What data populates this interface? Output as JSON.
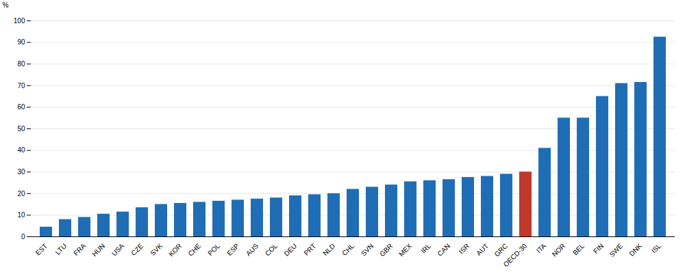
{
  "chart_data": {
    "type": "bar",
    "categories": [
      "EST",
      "LTU",
      "FRA",
      "HUN",
      "USA",
      "CZE",
      "SVK",
      "KOR",
      "CHE",
      "POL",
      "ESP",
      "AUS",
      "COL",
      "DEU",
      "PRT",
      "NLD",
      "CHL",
      "SVN",
      "GBR",
      "MEX",
      "IRL",
      "CAN",
      "ISR",
      "AUT",
      "GRC",
      "OECD-30",
      "ITA",
      "NOR",
      "BEL",
      "FIN",
      "SWE",
      "DNK",
      "ISL"
    ],
    "values": [
      4.5,
      8.0,
      9.0,
      10.5,
      11.5,
      13.5,
      15.0,
      15.5,
      16.0,
      16.5,
      17.0,
      17.5,
      18.0,
      19.0,
      19.5,
      20.0,
      22.0,
      23.0,
      24.0,
      25.5,
      26.0,
      26.5,
      27.5,
      28.0,
      29.0,
      30.0,
      41.0,
      55.0,
      55.0,
      65.0,
      71.0,
      71.5,
      92.5
    ],
    "colors": [
      "#1f6eb5",
      "#1f6eb5",
      "#1f6eb5",
      "#1f6eb5",
      "#1f6eb5",
      "#1f6eb5",
      "#1f6eb5",
      "#1f6eb5",
      "#1f6eb5",
      "#1f6eb5",
      "#1f6eb5",
      "#1f6eb5",
      "#1f6eb5",
      "#1f6eb5",
      "#1f6eb5",
      "#1f6eb5",
      "#1f6eb5",
      "#1f6eb5",
      "#1f6eb5",
      "#1f6eb5",
      "#1f6eb5",
      "#1f6eb5",
      "#1f6eb5",
      "#1f6eb5",
      "#1f6eb5",
      "#c0392b",
      "#1f6eb5",
      "#1f6eb5",
      "#1f6eb5",
      "#1f6eb5",
      "#1f6eb5",
      "#1f6eb5",
      "#1f6eb5"
    ],
    "y_label": "%",
    "ylim": [
      0,
      100
    ],
    "yticks": [
      0,
      10,
      20,
      30,
      40,
      50,
      60,
      70,
      80,
      90,
      100
    ],
    "grid": true
  }
}
